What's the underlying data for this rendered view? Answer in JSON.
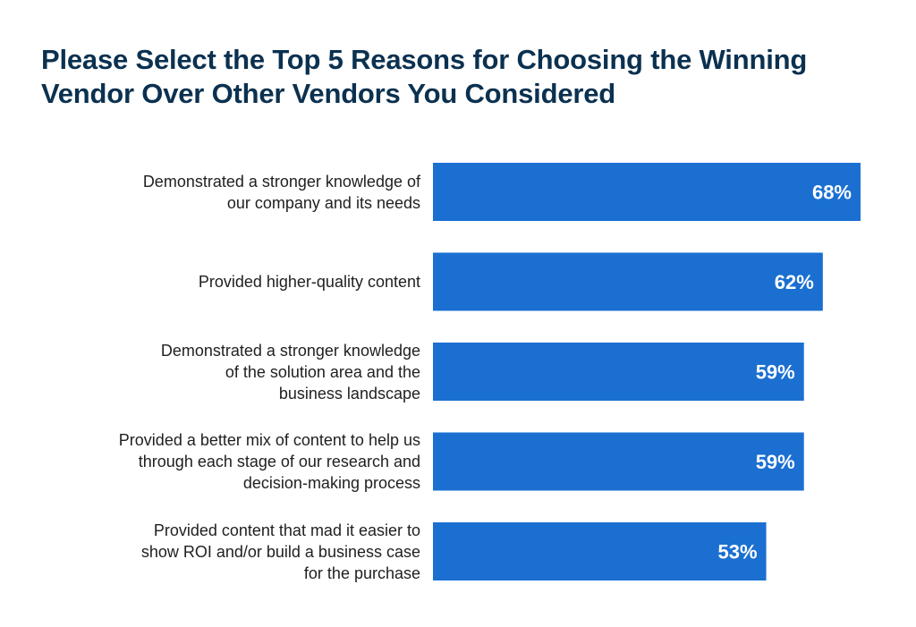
{
  "chart_data": {
    "type": "bar",
    "orientation": "horizontal",
    "title": "Please Select the Top 5 Reasons for Choosing the Winning Vendor Over Other Vendors You Considered",
    "categories": [
      "Demonstrated a stronger knowledge of our company and its needs",
      "Provided higher-quality content",
      "Demonstrated a stronger knowledge of the solution area and the business landscape",
      "Provided a better mix of content to help us through each stage of our research and decision-making process",
      "Provided content that mad it easier to show ROI and/or build a business case for the purchase"
    ],
    "values": [
      68,
      62,
      59,
      59,
      53
    ],
    "data_labels": [
      "68%",
      "62%",
      "59%",
      "59%",
      "53%"
    ],
    "unit": "%",
    "xlim": [
      0,
      68
    ],
    "grid": false,
    "legend": "none",
    "bar_color": "#1a6fd1",
    "label_color": "#ffffff",
    "title_color": "#0b3150"
  }
}
